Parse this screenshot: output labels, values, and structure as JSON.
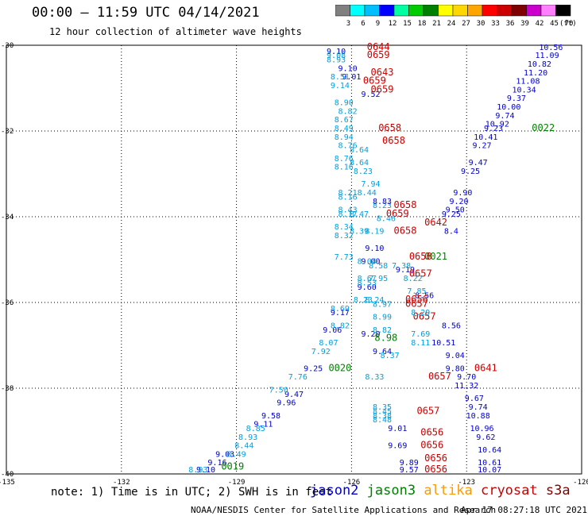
{
  "header": {
    "title": "00:00 – 11:59 UTC 04/14/2021",
    "subtitle": "12 hour collection of altimeter wave heights"
  },
  "colorbar": {
    "ticks": [
      "3",
      "6",
      "9",
      "12",
      "15",
      "18",
      "21",
      "24",
      "27",
      "30",
      "33",
      "36",
      "39",
      "42",
      "45",
      "70"
    ],
    "unit": "(ft)",
    "colors": [
      "#808080",
      "#00ffff",
      "#00bfff",
      "#0000ff",
      "#00ffa0",
      "#00cc00",
      "#008000",
      "#ffff00",
      "#ffd700",
      "#ffa500",
      "#ff0000",
      "#cc0000",
      "#800000",
      "#cc00cc",
      "#ff80ff",
      "#000000"
    ]
  },
  "chart_data": {
    "type": "scatter",
    "xlim": [
      -135,
      -120
    ],
    "ylim": [
      -40,
      -30
    ],
    "x_ticks": [
      "-135",
      "-132",
      "-129",
      "-126",
      "-123",
      "-120"
    ],
    "y_ticks": [
      "-30",
      "-32",
      "-34",
      "-36",
      "-38",
      "-40"
    ],
    "series": [
      {
        "name": "jason2",
        "color": "#0000cc",
        "points": [
          {
            "x": -120.8,
            "y": -30.1,
            "label": "10.56"
          },
          {
            "x": -120.9,
            "y": -30.3,
            "label": "11.09"
          },
          {
            "x": -121.1,
            "y": -30.5,
            "label": "10.82"
          },
          {
            "x": -121.2,
            "y": -30.7,
            "label": "11.20"
          },
          {
            "x": -121.4,
            "y": -30.9,
            "label": "11.08"
          },
          {
            "x": -121.5,
            "y": -31.1,
            "label": "10.34"
          },
          {
            "x": -121.7,
            "y": -31.3,
            "label": "9.37"
          },
          {
            "x": -121.9,
            "y": -31.5,
            "label": "10.00"
          },
          {
            "x": -122.0,
            "y": -31.7,
            "label": "9.74"
          },
          {
            "x": -122.2,
            "y": -31.9,
            "label": "10.92"
          },
          {
            "x": -122.3,
            "y": -32.0,
            "label": "9.23"
          },
          {
            "x": -122.5,
            "y": -32.2,
            "label": "10.41"
          },
          {
            "x": -122.6,
            "y": -32.4,
            "label": "9.27"
          },
          {
            "x": -122.7,
            "y": -32.8,
            "label": "9.47"
          },
          {
            "x": -122.9,
            "y": -33.0,
            "label": "9.25"
          },
          {
            "x": -123.1,
            "y": -33.5,
            "label": "9.90"
          },
          {
            "x": -123.2,
            "y": -33.7,
            "label": "9.20"
          },
          {
            "x": -123.3,
            "y": -33.9,
            "label": "9.50"
          },
          {
            "x": -123.4,
            "y": -34.0,
            "label": "9.25"
          },
          {
            "x": -124.6,
            "y": -35.3,
            "label": "9.19"
          },
          {
            "x": -125.4,
            "y": -34.8,
            "label": "9.10"
          },
          {
            "x": -125.5,
            "y": -35.1,
            "label": "9.00"
          },
          {
            "x": -125.6,
            "y": -35.7,
            "label": "9.60"
          },
          {
            "x": -126.3,
            "y": -36.3,
            "label": "9.17"
          },
          {
            "x": -126.5,
            "y": -36.7,
            "label": "9.06"
          },
          {
            "x": -127.0,
            "y": -37.6,
            "label": "9.25"
          },
          {
            "x": -127.5,
            "y": -38.2,
            "label": "9.47"
          },
          {
            "x": -127.7,
            "y": -38.4,
            "label": "9.96"
          },
          {
            "x": -128.1,
            "y": -38.7,
            "label": "9.58"
          },
          {
            "x": -128.3,
            "y": -38.9,
            "label": "9.11"
          },
          {
            "x": -129.3,
            "y": -39.6,
            "label": "9.03"
          },
          {
            "x": -129.5,
            "y": -39.8,
            "label": "9.16"
          },
          {
            "x": -129.8,
            "y": -40.0,
            "label": "9.10"
          },
          {
            "x": -126.4,
            "y": -30.2,
            "label": "9.10"
          },
          {
            "x": -126.1,
            "y": -30.6,
            "label": "9.10"
          },
          {
            "x": -126.0,
            "y": -30.8,
            "label": "9.01"
          },
          {
            "x": -125.5,
            "y": -31.2,
            "label": "9.52"
          },
          {
            "x": -125.2,
            "y": -37.2,
            "label": "9.64"
          },
          {
            "x": -125.5,
            "y": -36.8,
            "label": "9.20"
          },
          {
            "x": -124.8,
            "y": -39.0,
            "label": "9.01"
          },
          {
            "x": -124.8,
            "y": -39.4,
            "label": "9.69"
          },
          {
            "x": -124.5,
            "y": -39.8,
            "label": "9.89"
          },
          {
            "x": -124.5,
            "y": -40.0,
            "label": "9.57"
          },
          {
            "x": -123.6,
            "y": -37.0,
            "label": "10.51"
          },
          {
            "x": -123.3,
            "y": -37.3,
            "label": "9.04"
          },
          {
            "x": -123.3,
            "y": -37.6,
            "label": "9.80"
          },
          {
            "x": -123.0,
            "y": -37.8,
            "label": "9.70"
          },
          {
            "x": -123.0,
            "y": -38.0,
            "label": "11.32"
          },
          {
            "x": -122.8,
            "y": -38.3,
            "label": "9.67"
          },
          {
            "x": -122.7,
            "y": -38.5,
            "label": "9.74"
          },
          {
            "x": -122.7,
            "y": -38.7,
            "label": "10.88"
          },
          {
            "x": -122.6,
            "y": -39.0,
            "label": "10.96"
          },
          {
            "x": -122.5,
            "y": -39.2,
            "label": "9.62"
          },
          {
            "x": -122.4,
            "y": -39.5,
            "label": "10.64"
          },
          {
            "x": -122.4,
            "y": -39.8,
            "label": "10.61"
          },
          {
            "x": -122.4,
            "y": -40.0,
            "label": "10.07"
          },
          {
            "x": -123.4,
            "y": -34.4,
            "label": "8.4"
          },
          {
            "x": -123.4,
            "y": -36.6,
            "label": "8.56"
          },
          {
            "x": -125.2,
            "y": -33.7,
            "label": "8.83"
          },
          {
            "x": -124.1,
            "y": -35.9,
            "label": "8.56"
          }
        ]
      },
      {
        "name": "jason3",
        "color": "#008000",
        "points": [
          {
            "x": -121.0,
            "y": -32.0,
            "label": "0022"
          },
          {
            "x": -123.8,
            "y": -35.0,
            "label": "0021"
          },
          {
            "x": -126.3,
            "y": -37.6,
            "label": "0020"
          },
          {
            "x": -129.1,
            "y": -39.9,
            "label": "0019"
          },
          {
            "x": -125.1,
            "y": -36.9,
            "label": "8.98"
          }
        ]
      },
      {
        "name": "cryosat",
        "color": "#cc0000",
        "points": [
          {
            "x": -125.3,
            "y": -30.1,
            "label": "0644"
          },
          {
            "x": -125.3,
            "y": -30.3,
            "label": "0659"
          },
          {
            "x": -125.2,
            "y": -30.7,
            "label": "0643"
          },
          {
            "x": -125.4,
            "y": -30.9,
            "label": "0659"
          },
          {
            "x": -125.2,
            "y": -31.1,
            "label": "0659"
          },
          {
            "x": -125.0,
            "y": -32.0,
            "label": "0658"
          },
          {
            "x": -124.9,
            "y": -32.3,
            "label": "0658"
          },
          {
            "x": -124.6,
            "y": -33.8,
            "label": "0658"
          },
          {
            "x": -124.8,
            "y": -34.0,
            "label": "0659"
          },
          {
            "x": -123.8,
            "y": -34.2,
            "label": "0642"
          },
          {
            "x": -124.6,
            "y": -34.4,
            "label": "0658"
          },
          {
            "x": -124.2,
            "y": -35.0,
            "label": "0658"
          },
          {
            "x": -124.2,
            "y": -35.4,
            "label": "0657"
          },
          {
            "x": -124.3,
            "y": -36.0,
            "label": "0656"
          },
          {
            "x": -124.3,
            "y": -36.1,
            "label": "0657"
          },
          {
            "x": -124.1,
            "y": -36.4,
            "label": "0657"
          },
          {
            "x": -122.5,
            "y": -37.6,
            "label": "0641"
          },
          {
            "x": -123.7,
            "y": -37.8,
            "label": "0657"
          },
          {
            "x": -124.0,
            "y": -38.6,
            "label": "0657"
          },
          {
            "x": -123.9,
            "y": -39.1,
            "label": "0656"
          },
          {
            "x": -123.9,
            "y": -39.4,
            "label": "0656"
          },
          {
            "x": -123.8,
            "y": -39.7,
            "label": "0656"
          },
          {
            "x": -123.8,
            "y": -40.0,
            "label": "0656"
          }
        ]
      },
      {
        "name": "jason3-light",
        "color": "#00a0e0",
        "points": [
          {
            "x": -126.4,
            "y": -30.3,
            "label": "9.08"
          },
          {
            "x": -126.4,
            "y": -30.4,
            "label": "8.93"
          },
          {
            "x": -126.3,
            "y": -30.8,
            "label": "8.51"
          },
          {
            "x": -126.3,
            "y": -31.0,
            "label": "9.14"
          },
          {
            "x": -126.2,
            "y": -31.4,
            "label": "8.90"
          },
          {
            "x": -126.1,
            "y": -31.6,
            "label": "8.82"
          },
          {
            "x": -126.2,
            "y": -31.8,
            "label": "8.67"
          },
          {
            "x": -126.2,
            "y": -32.0,
            "label": "8.49"
          },
          {
            "x": -126.2,
            "y": -32.2,
            "label": "8.94"
          },
          {
            "x": -126.1,
            "y": -32.4,
            "label": "8.76"
          },
          {
            "x": -125.8,
            "y": -32.5,
            "label": "8.64"
          },
          {
            "x": -125.8,
            "y": -32.8,
            "label": "8.64"
          },
          {
            "x": -126.2,
            "y": -32.7,
            "label": "8.76"
          },
          {
            "x": -126.2,
            "y": -32.9,
            "label": "8.16"
          },
          {
            "x": -125.7,
            "y": -33.0,
            "label": "8.23"
          },
          {
            "x": -125.5,
            "y": -33.3,
            "label": "7.94"
          },
          {
            "x": -126.1,
            "y": -33.5,
            "label": "8.21"
          },
          {
            "x": -126.1,
            "y": -33.6,
            "label": "8.16"
          },
          {
            "x": -125.6,
            "y": -33.5,
            "label": "8.44"
          },
          {
            "x": -125.2,
            "y": -33.8,
            "label": "8.23"
          },
          {
            "x": -126.1,
            "y": -33.9,
            "label": "8.43"
          },
          {
            "x": -126.1,
            "y": -34.0,
            "label": "8.17"
          },
          {
            "x": -125.8,
            "y": -34.0,
            "label": "8.47"
          },
          {
            "x": -125.1,
            "y": -34.1,
            "label": "8.46"
          },
          {
            "x": -126.2,
            "y": -34.3,
            "label": "8.34"
          },
          {
            "x": -126.2,
            "y": -34.5,
            "label": "8.32"
          },
          {
            "x": -125.8,
            "y": -34.4,
            "label": "8.39"
          },
          {
            "x": -125.4,
            "y": -34.4,
            "label": "8.19"
          },
          {
            "x": -126.2,
            "y": -35.0,
            "label": "7.73"
          },
          {
            "x": -125.6,
            "y": -35.1,
            "label": "8.04"
          },
          {
            "x": -125.3,
            "y": -35.2,
            "label": "8.58"
          },
          {
            "x": -124.7,
            "y": -35.2,
            "label": "7.38"
          },
          {
            "x": -125.6,
            "y": -35.5,
            "label": "8.67"
          },
          {
            "x": -125.6,
            "y": -35.6,
            "label": "8.53"
          },
          {
            "x": -125.3,
            "y": -35.5,
            "label": "7.95"
          },
          {
            "x": -124.4,
            "y": -35.5,
            "label": "8.22"
          },
          {
            "x": -124.3,
            "y": -35.8,
            "label": "7.85"
          },
          {
            "x": -125.7,
            "y": -36.0,
            "label": "8.23"
          },
          {
            "x": -125.4,
            "y": -36.0,
            "label": "8.24"
          },
          {
            "x": -125.2,
            "y": -36.1,
            "label": "8.97"
          },
          {
            "x": -126.3,
            "y": -36.2,
            "label": "8.69"
          },
          {
            "x": -125.2,
            "y": -36.4,
            "label": "8.99"
          },
          {
            "x": -126.3,
            "y": -36.6,
            "label": "8.82"
          },
          {
            "x": -125.2,
            "y": -36.7,
            "label": "8.82"
          },
          {
            "x": -124.2,
            "y": -36.3,
            "label": "8.29"
          },
          {
            "x": -124.2,
            "y": -36.8,
            "label": "7.69"
          },
          {
            "x": -124.2,
            "y": -37.0,
            "label": "8.11"
          },
          {
            "x": -126.6,
            "y": -37.0,
            "label": "8.07"
          },
          {
            "x": -126.8,
            "y": -37.2,
            "label": "7.92"
          },
          {
            "x": -127.4,
            "y": -37.8,
            "label": "7.76"
          },
          {
            "x": -127.9,
            "y": -38.1,
            "label": "7.50"
          },
          {
            "x": -128.5,
            "y": -39.0,
            "label": "8.85"
          },
          {
            "x": -128.7,
            "y": -39.2,
            "label": "8.93"
          },
          {
            "x": -128.8,
            "y": -39.4,
            "label": "8.44"
          },
          {
            "x": -129.0,
            "y": -39.6,
            "label": "8.49"
          },
          {
            "x": -130.0,
            "y": -40.0,
            "label": "8.93"
          },
          {
            "x": -125.4,
            "y": -37.8,
            "label": "8.33"
          },
          {
            "x": -125.2,
            "y": -38.5,
            "label": "8.35"
          },
          {
            "x": -125.2,
            "y": -38.6,
            "label": "8.45"
          },
          {
            "x": -125.2,
            "y": -38.7,
            "label": "8.38"
          },
          {
            "x": -125.2,
            "y": -38.8,
            "label": "8.48"
          },
          {
            "x": -125.0,
            "y": -37.3,
            "label": "8.37"
          }
        ]
      }
    ]
  },
  "note": "note: 1) Time is in UTC; 2) SWH is in feet",
  "satellites": [
    {
      "name": "jason2",
      "color": "#0000cc"
    },
    {
      "name": "jason3",
      "color": "#008000"
    },
    {
      "name": "altika",
      "color": "#ff9900"
    },
    {
      "name": "cryosat",
      "color": "#cc0000"
    },
    {
      "name": "s3a",
      "color": "#800000"
    }
  ],
  "footer": {
    "left": "NOAA/NESDIS Center for Satellite Applications and Research",
    "right": "Apr 17 08:27:18 UTC 2021"
  }
}
